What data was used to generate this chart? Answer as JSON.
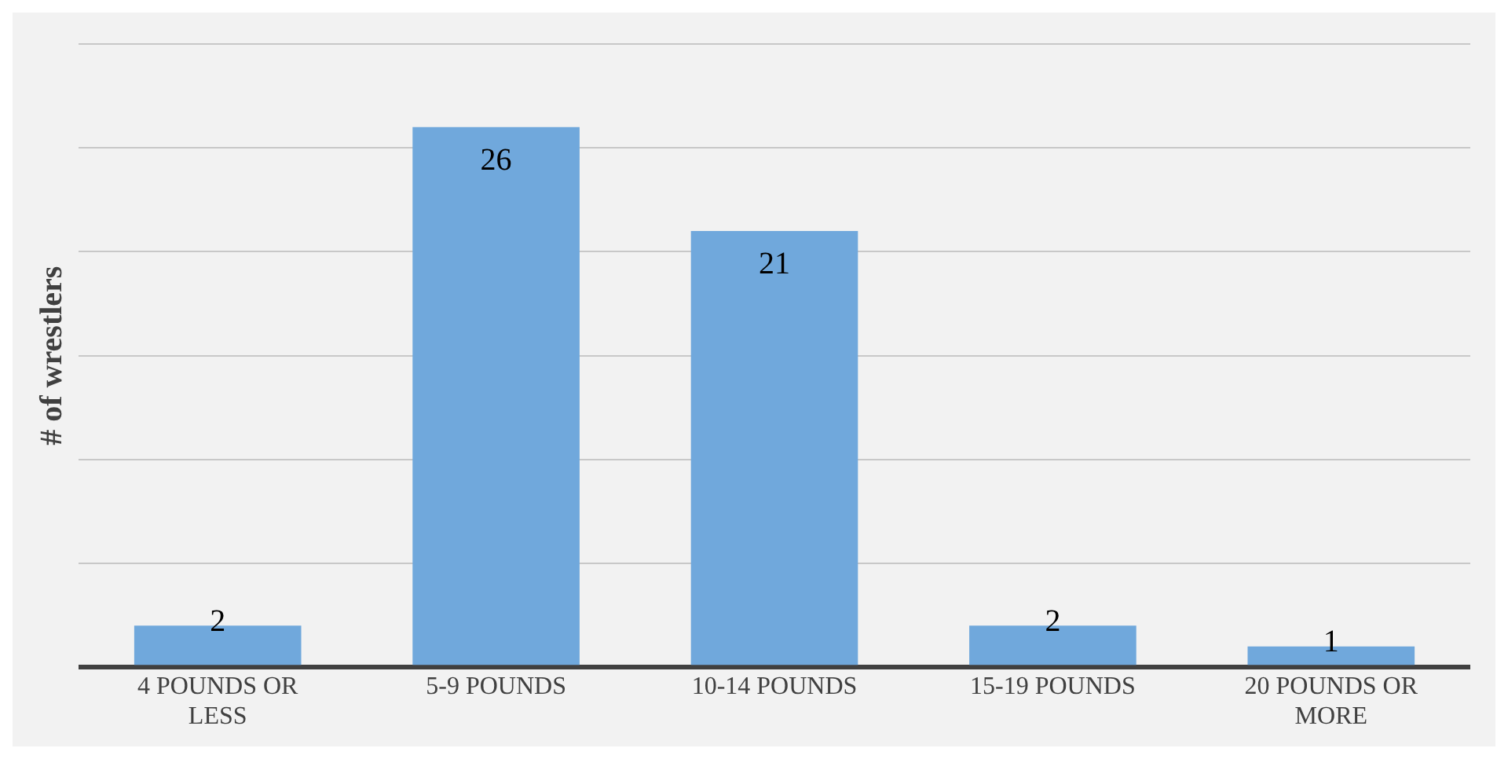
{
  "chart_data": {
    "type": "bar",
    "ylabel": "# of wrestlers",
    "categories": [
      "4 POUNDS OR LESS",
      "5-9 POUNDS",
      "10-14 POUNDS",
      "15-19 POUNDS",
      "20 POUNDS OR MORE"
    ],
    "values": [
      2,
      26,
      21,
      2,
      1
    ],
    "color": "#70a8dc",
    "grid": "y",
    "tick_labels": "x",
    "data_labels": true
  }
}
